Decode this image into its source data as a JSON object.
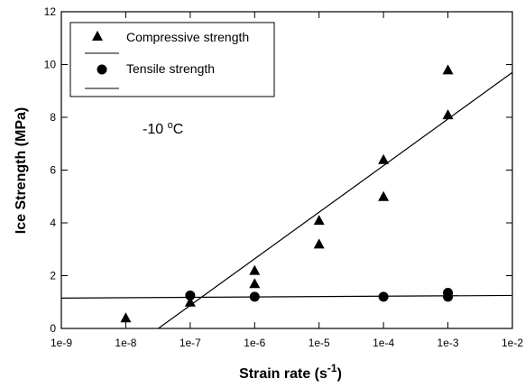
{
  "chart_data": {
    "type": "scatter",
    "x_scale": "log",
    "xlabel": "Strain rate (s",
    "xlabel_sup": "-1",
    "xlabel_close": ")",
    "ylabel": "Ice Strength (MPa)",
    "xlim": [
      "1e-9",
      "1e-2"
    ],
    "ylim": [
      0,
      12
    ],
    "x_ticks": [
      "1e-9",
      "1e-8",
      "1e-7",
      "1e-6",
      "1e-5",
      "1e-4",
      "1e-3",
      "1e-2"
    ],
    "y_ticks": [
      "0",
      "2",
      "4",
      "6",
      "8",
      "10",
      "12"
    ],
    "grid": false,
    "legend_position": "top-left",
    "annotation": {
      "text": "-10 ",
      "sup": "o",
      "tail": "C"
    },
    "series": [
      {
        "name": "Compressive strength",
        "marker": "triangle",
        "points": [
          {
            "x": "1e-8",
            "y": 0.4
          },
          {
            "x": "1e-7",
            "y": 1.0
          },
          {
            "x": "1e-6",
            "y": 2.2
          },
          {
            "x": "1e-6",
            "y": 1.7
          },
          {
            "x": "1e-5",
            "y": 4.1
          },
          {
            "x": "1e-5",
            "y": 3.2
          },
          {
            "x": "1e-4",
            "y": 6.4
          },
          {
            "x": "1e-4",
            "y": 5.0
          },
          {
            "x": "1e-3",
            "y": 9.8
          },
          {
            "x": "1e-3",
            "y": 8.1
          }
        ],
        "fit": [
          {
            "x": "3.2e-8",
            "y": 0.0
          },
          {
            "x": "1e-2",
            "y": 9.7
          }
        ]
      },
      {
        "name": "Tensile strength",
        "marker": "circle",
        "points": [
          {
            "x": "1e-7",
            "y": 1.25
          },
          {
            "x": "1e-6",
            "y": 1.2
          },
          {
            "x": "1e-4",
            "y": 1.2
          },
          {
            "x": "1e-3",
            "y": 1.35
          },
          {
            "x": "1e-3",
            "y": 1.2
          }
        ],
        "fit": [
          {
            "x": "1e-9",
            "y": 1.15
          },
          {
            "x": "1e-2",
            "y": 1.25
          }
        ]
      }
    ]
  }
}
